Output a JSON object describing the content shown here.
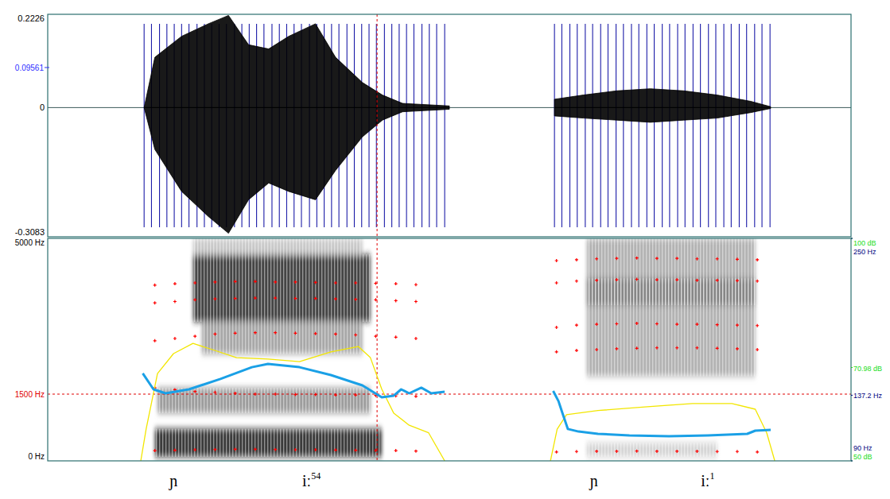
{
  "chart_data": [
    {
      "type": "waveform",
      "xlim": [
        0,
        1.2
      ],
      "ylim": [
        -0.3083,
        0.2226
      ],
      "yticks": [
        -0.3083,
        0,
        0.2226
      ],
      "tick_labels": "y",
      "color": "#000000",
      "series": [
        {
          "x": [
            0.144,
            0.16,
            0.2,
            0.24,
            0.27,
            0.3,
            0.33,
            0.36,
            0.4,
            0.43,
            0.47,
            0.5,
            0.53,
            0.6,
            0.68,
            0.757,
            0.8,
            0.85,
            0.9,
            0.95,
            1.0,
            1.05,
            1.08
          ],
          "values": [
            0,
            0.12,
            0.17,
            0.2,
            0.22,
            0.15,
            0.14,
            0.17,
            0.2,
            0.12,
            0.06,
            0.03,
            0.01,
            0.004,
            null,
            0.02,
            0.03,
            0.04,
            0.045,
            0.04,
            0.03,
            0.015,
            0.002
          ]
        },
        {
          "x": [
            0.144,
            0.16,
            0.2,
            0.24,
            0.27,
            0.3,
            0.33,
            0.36,
            0.4,
            0.43,
            0.47,
            0.5,
            0.53,
            0.6,
            0.68,
            0.757,
            0.8,
            0.85,
            0.9,
            0.95,
            1.0,
            1.05,
            1.08
          ],
          "values": [
            0,
            -0.1,
            -0.2,
            -0.26,
            -0.3,
            -0.22,
            -0.18,
            -0.2,
            -0.22,
            -0.15,
            -0.07,
            -0.03,
            -0.01,
            -0.004,
            null,
            -0.02,
            -0.025,
            -0.03,
            -0.035,
            -0.03,
            -0.025,
            -0.012,
            -0.002
          ]
        }
      ],
      "pulses": {
        "color": "#1c1ca8",
        "x": [
          0.144,
          0.155,
          0.167,
          0.178,
          0.189,
          0.2,
          0.211,
          0.223,
          0.234,
          0.245,
          0.256,
          0.267,
          0.279,
          0.29,
          0.301,
          0.312,
          0.323,
          0.335,
          0.346,
          0.357,
          0.368,
          0.379,
          0.391,
          0.402,
          0.413,
          0.424,
          0.435,
          0.447,
          0.458,
          0.469,
          0.48,
          0.491,
          0.503,
          0.514,
          0.525,
          0.536,
          0.547,
          0.559,
          0.57,
          0.581,
          0.593,
          0.757,
          0.768,
          0.78,
          0.791,
          0.803,
          0.814,
          0.826,
          0.837,
          0.849,
          0.86,
          0.872,
          0.883,
          0.895,
          0.906,
          0.918,
          0.929,
          0.941,
          0.952,
          0.964,
          0.975,
          0.987,
          0.998,
          1.01,
          1.021,
          1.033,
          1.044,
          1.056,
          1.067,
          1.079
        ]
      },
      "cursor": {
        "x": 0.492,
        "y": 0.09561,
        "label": "0.09561",
        "color": "#3030ff"
      }
    },
    {
      "type": "spectrogram",
      "xlim": [
        0,
        1.2
      ],
      "ylim": [
        0,
        5000
      ],
      "yticks": [
        {
          "value": 5000,
          "label": "5000 Hz"
        },
        {
          "value": 0,
          "label": "0 Hz"
        }
      ],
      "tick_labels": "y",
      "color": "#000000",
      "bands": [
        {
          "x": [
            0.217,
            0.482
          ],
          "y": [
            3125,
            4640
          ],
          "level": 0.85
        },
        {
          "x": [
            0.217,
            0.47
          ],
          "y": [
            4640,
            5000
          ],
          "level": 0.25
        },
        {
          "x": [
            0.23,
            0.47
          ],
          "y": [
            2400,
            3125
          ],
          "level": 0.4
        },
        {
          "x": [
            0.164,
            0.482
          ],
          "y": [
            1070,
            1640
          ],
          "level": 0.45
        },
        {
          "x": [
            0.16,
            0.499
          ],
          "y": [
            90,
            720
          ],
          "level": 0.9
        },
        {
          "x": [
            0.805,
            1.057
          ],
          "y": [
            1900,
            5000
          ],
          "level": 0.35
        },
        {
          "x": [
            0.805,
            1.057
          ],
          "y": [
            3500,
            4100
          ],
          "level": 0.5
        },
        {
          "x": [
            0.805,
            1.0
          ],
          "y": [
            90,
            400
          ],
          "level": 0.2
        }
      ],
      "series": [
        {
          "type": "scatter",
          "marker": "plus",
          "color": "#ff0000",
          "x": [
            0.16,
            0.19,
            0.22,
            0.25,
            0.28,
            0.31,
            0.34,
            0.37,
            0.4,
            0.43,
            0.46,
            0.49,
            0.52,
            0.55,
            0.76,
            0.79,
            0.82,
            0.85,
            0.88,
            0.91,
            0.94,
            0.97,
            1.0,
            1.03,
            1.06
          ],
          "values": [
            230,
            240,
            250,
            255,
            260,
            260,
            255,
            250,
            250,
            245,
            240,
            235,
            230,
            220,
            200,
            210,
            215,
            215,
            220,
            215,
            215,
            215,
            210,
            210,
            200
          ]
        },
        {
          "type": "scatter",
          "marker": "plus",
          "color": "#ff0000",
          "x": [
            0.16,
            0.19,
            0.22,
            0.25,
            0.28,
            0.31,
            0.34,
            0.37,
            0.4,
            0.43,
            0.46,
            0.49,
            0.52,
            0.55,
            0.76,
            0.79,
            0.82,
            0.85,
            0.88,
            0.91,
            0.94,
            0.97,
            1.0,
            1.03,
            1.06
          ],
          "values": [
            1640,
            1600,
            1560,
            1540,
            1520,
            1500,
            1500,
            1490,
            1490,
            1480,
            1480,
            1470,
            1460,
            1450,
            2450,
            2480,
            2500,
            2520,
            2530,
            2540,
            2540,
            2540,
            2530,
            2520,
            2500
          ]
        },
        {
          "type": "scatter",
          "marker": "plus",
          "color": "#ff0000",
          "x": [
            0.16,
            0.19,
            0.22,
            0.25,
            0.28,
            0.31,
            0.34,
            0.37,
            0.4,
            0.43,
            0.46,
            0.49,
            0.52,
            0.55,
            0.76,
            0.79,
            0.82,
            0.85,
            0.88,
            0.91,
            0.94,
            0.97,
            1.0,
            1.03,
            1.06
          ],
          "values": [
            2700,
            2750,
            2800,
            2850,
            2870,
            2880,
            2880,
            2870,
            2860,
            2850,
            2830,
            2800,
            2780,
            2750,
            3000,
            3050,
            3070,
            3080,
            3090,
            3080,
            3070,
            3070,
            3060,
            3050,
            3040
          ]
        },
        {
          "type": "scatter",
          "marker": "plus",
          "color": "#ff0000",
          "x": [
            0.16,
            0.19,
            0.22,
            0.25,
            0.28,
            0.31,
            0.34,
            0.37,
            0.4,
            0.43,
            0.46,
            0.49,
            0.52,
            0.55,
            0.76,
            0.79,
            0.82,
            0.85,
            0.88,
            0.91,
            0.94,
            0.97,
            1.0,
            1.03,
            1.06
          ],
          "values": [
            3550,
            3580,
            3620,
            3640,
            3650,
            3660,
            3660,
            3650,
            3650,
            3640,
            3630,
            3620,
            3600,
            3580,
            4000,
            4040,
            4060,
            4070,
            4080,
            4070,
            4070,
            4060,
            4060,
            4050,
            4040
          ]
        },
        {
          "type": "scatter",
          "marker": "plus",
          "color": "#ff0000",
          "x": [
            0.16,
            0.19,
            0.22,
            0.25,
            0.28,
            0.31,
            0.34,
            0.37,
            0.4,
            0.43,
            0.46,
            0.49,
            0.52,
            0.55,
            0.76,
            0.79,
            0.82,
            0.85,
            0.88,
            0.91,
            0.94,
            0.97,
            1.0,
            1.03,
            1.06
          ],
          "values": [
            3950,
            3980,
            4000,
            4020,
            4030,
            4030,
            4020,
            4020,
            4010,
            4000,
            4000,
            3990,
            3980,
            3960,
            4500,
            4520,
            4540,
            4550,
            4560,
            4550,
            4550,
            4540,
            4540,
            4530,
            4520
          ]
        }
      ],
      "cursor": {
        "x": 0.492,
        "y": 1500,
        "label": "1500 Hz",
        "color": "#e00000"
      },
      "annotations": [
        {
          "text": "ɲ",
          "x": 0.188
        },
        {
          "text": "iː",
          "tone": "54",
          "x": 0.394
        },
        {
          "text": "ɲ",
          "x": 0.816
        },
        {
          "text": "iː",
          "tone": "1",
          "x": 0.986
        }
      ]
    },
    {
      "type": "line",
      "xlim": [
        0,
        1.2
      ],
      "ylim": [
        50,
        100
      ],
      "yticks": [
        {
          "value": 100,
          "label": "100 dB"
        },
        {
          "value": 50,
          "label": "50 dB"
        }
      ],
      "tick_labels": "y",
      "color": "#22dd22",
      "series": [
        {
          "color": "#f2e600",
          "x": [
            0.139,
            0.147,
            0.164,
            0.188,
            0.217,
            0.246,
            0.282,
            0.329,
            0.376,
            0.423,
            0.464,
            0.482,
            0.499,
            0.517,
            0.54,
            0.569,
            0.593,
            0.68,
            0.751,
            0.761,
            0.775,
            0.822,
            0.892,
            0.963,
            1.022,
            1.057,
            1.074,
            1.086
          ],
          "values": [
            50,
            57.1,
            69.6,
            74.1,
            76.4,
            75,
            73.2,
            72.9,
            72.3,
            74.5,
            75.7,
            73.2,
            66.1,
            60.7,
            58,
            56.3,
            50,
            null,
            50,
            57.1,
            60.4,
            61.3,
            62.1,
            62.9,
            62.9,
            61.6,
            56.3,
            50
          ]
        }
      ],
      "cursor": {
        "y": 70.98,
        "label": "70.98 dB",
        "color": "#22dd22"
      }
    },
    {
      "type": "line",
      "xlim": [
        0,
        1.2
      ],
      "ylim": [
        90,
        250
      ],
      "yticks": [
        {
          "value": 250,
          "label": "250 Hz"
        },
        {
          "value": 90,
          "label": "90 Hz"
        }
      ],
      "tick_labels": "y",
      "color": "#000080",
      "series": [
        {
          "color": "#1aa0e6",
          "x": [
            0.142,
            0.158,
            0.176,
            0.211,
            0.258,
            0.305,
            0.329,
            0.376,
            0.423,
            0.47,
            0.499,
            0.517,
            0.528,
            0.54,
            0.558,
            0.573,
            0.593,
            0.68,
            0.755,
            0.763,
            0.769,
            0.777,
            0.793,
            0.822,
            0.869,
            0.928,
            0.986,
            1.045,
            1.057,
            1.08
          ],
          "values": [
            152.9,
            141.4,
            138.6,
            141.4,
            148.9,
            157.4,
            159.7,
            157.4,
            151.7,
            144.3,
            135.7,
            136.9,
            141.4,
            138.6,
            142.6,
            138.6,
            139.7,
            null,
            140.3,
            132.9,
            124.3,
            112.9,
            111.1,
            109.4,
            108.3,
            107.7,
            108.3,
            109.4,
            111.7,
            112.3
          ]
        }
      ],
      "cursor": {
        "y": 137.2,
        "label": "137.2 Hz",
        "color": "#000080"
      }
    }
  ]
}
